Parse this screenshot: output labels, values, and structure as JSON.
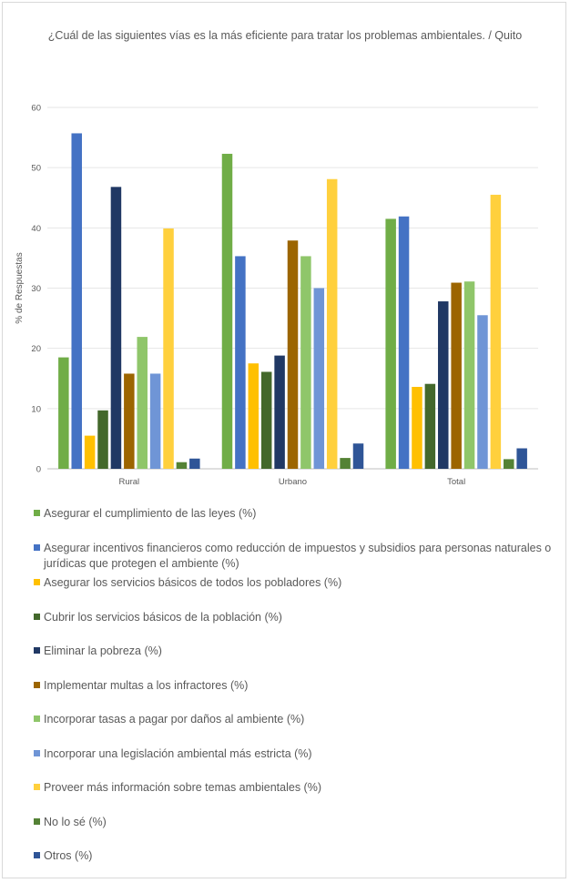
{
  "chart_data": {
    "type": "bar",
    "title": "¿Cuál de las siguientes vías es la más eficiente para tratar los problemas ambientales. / Quito",
    "ylabel": "% de Respuestas",
    "xlabel": "",
    "ylim": [
      0,
      60
    ],
    "yticks": [
      0,
      10,
      20,
      30,
      40,
      50,
      60
    ],
    "grid": true,
    "legend_position": "bottom",
    "categories": [
      "Rural",
      "Urbano",
      "Total"
    ],
    "series": [
      {
        "name": "Asegurar el cumplimiento de las leyes (%)",
        "color": "#70ad47",
        "values": [
          18.5,
          52.3,
          41.5
        ]
      },
      {
        "name": "Asegurar incentivos financieros como reducción de impuestos y subsidios para personas naturales o jurídicas que protegen el ambiente (%)",
        "color": "#4472c4",
        "values": [
          55.7,
          35.3,
          41.9
        ]
      },
      {
        "name": "Asegurar los servicios básicos de todos los pobladores (%)",
        "color": "#ffc000",
        "values": [
          5.5,
          17.5,
          13.6
        ]
      },
      {
        "name": "Cubrir los servicios básicos de la población (%)",
        "color": "#43682b",
        "values": [
          9.7,
          16.1,
          14.1
        ]
      },
      {
        "name": "Eliminar la pobreza (%)",
        "color": "#203864",
        "values": [
          46.8,
          18.8,
          27.8
        ]
      },
      {
        "name": "Implementar multas a los infractores (%)",
        "color": "#9c6500",
        "values": [
          15.8,
          37.9,
          30.9
        ]
      },
      {
        "name": "Incorporar tasas a pagar por daños al ambiente (%)",
        "color": "#8fc66a",
        "values": [
          21.9,
          35.3,
          31.1
        ]
      },
      {
        "name": "Incorporar una legislación ambiental más estricta (%)",
        "color": "#6f95d6",
        "values": [
          15.8,
          30.0,
          25.5
        ]
      },
      {
        "name": "Proveer más información sobre temas ambientales (%)",
        "color": "#ffd03d",
        "values": [
          39.9,
          48.1,
          45.5
        ]
      },
      {
        "name": "No lo sé (%)",
        "color": "#548235",
        "values": [
          1.1,
          1.8,
          1.6
        ]
      },
      {
        "name": "Otros (%)",
        "color": "#2f5597",
        "values": [
          1.7,
          4.2,
          3.4
        ]
      }
    ]
  }
}
